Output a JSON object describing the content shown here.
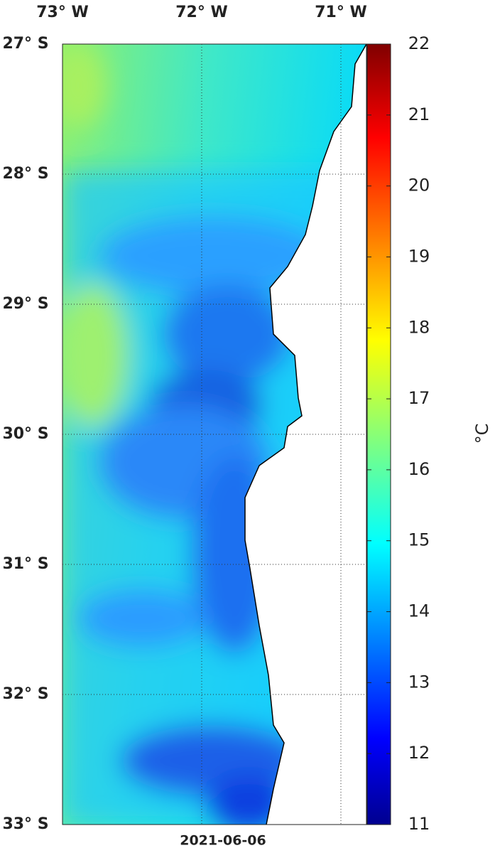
{
  "map": {
    "date": "2021-06-06",
    "lon_labels": [
      "73° W",
      "72° W",
      "71° W"
    ],
    "lat_labels": [
      "27° S",
      "28° S",
      "29° S",
      "30° S",
      "31° S",
      "32° S",
      "33° S"
    ],
    "colorbar": {
      "label": "°C",
      "lim": [
        11,
        22
      ],
      "ticks": [
        11,
        12,
        13,
        14,
        15,
        16,
        17,
        18,
        19,
        20,
        21,
        22
      ]
    }
  }
}
